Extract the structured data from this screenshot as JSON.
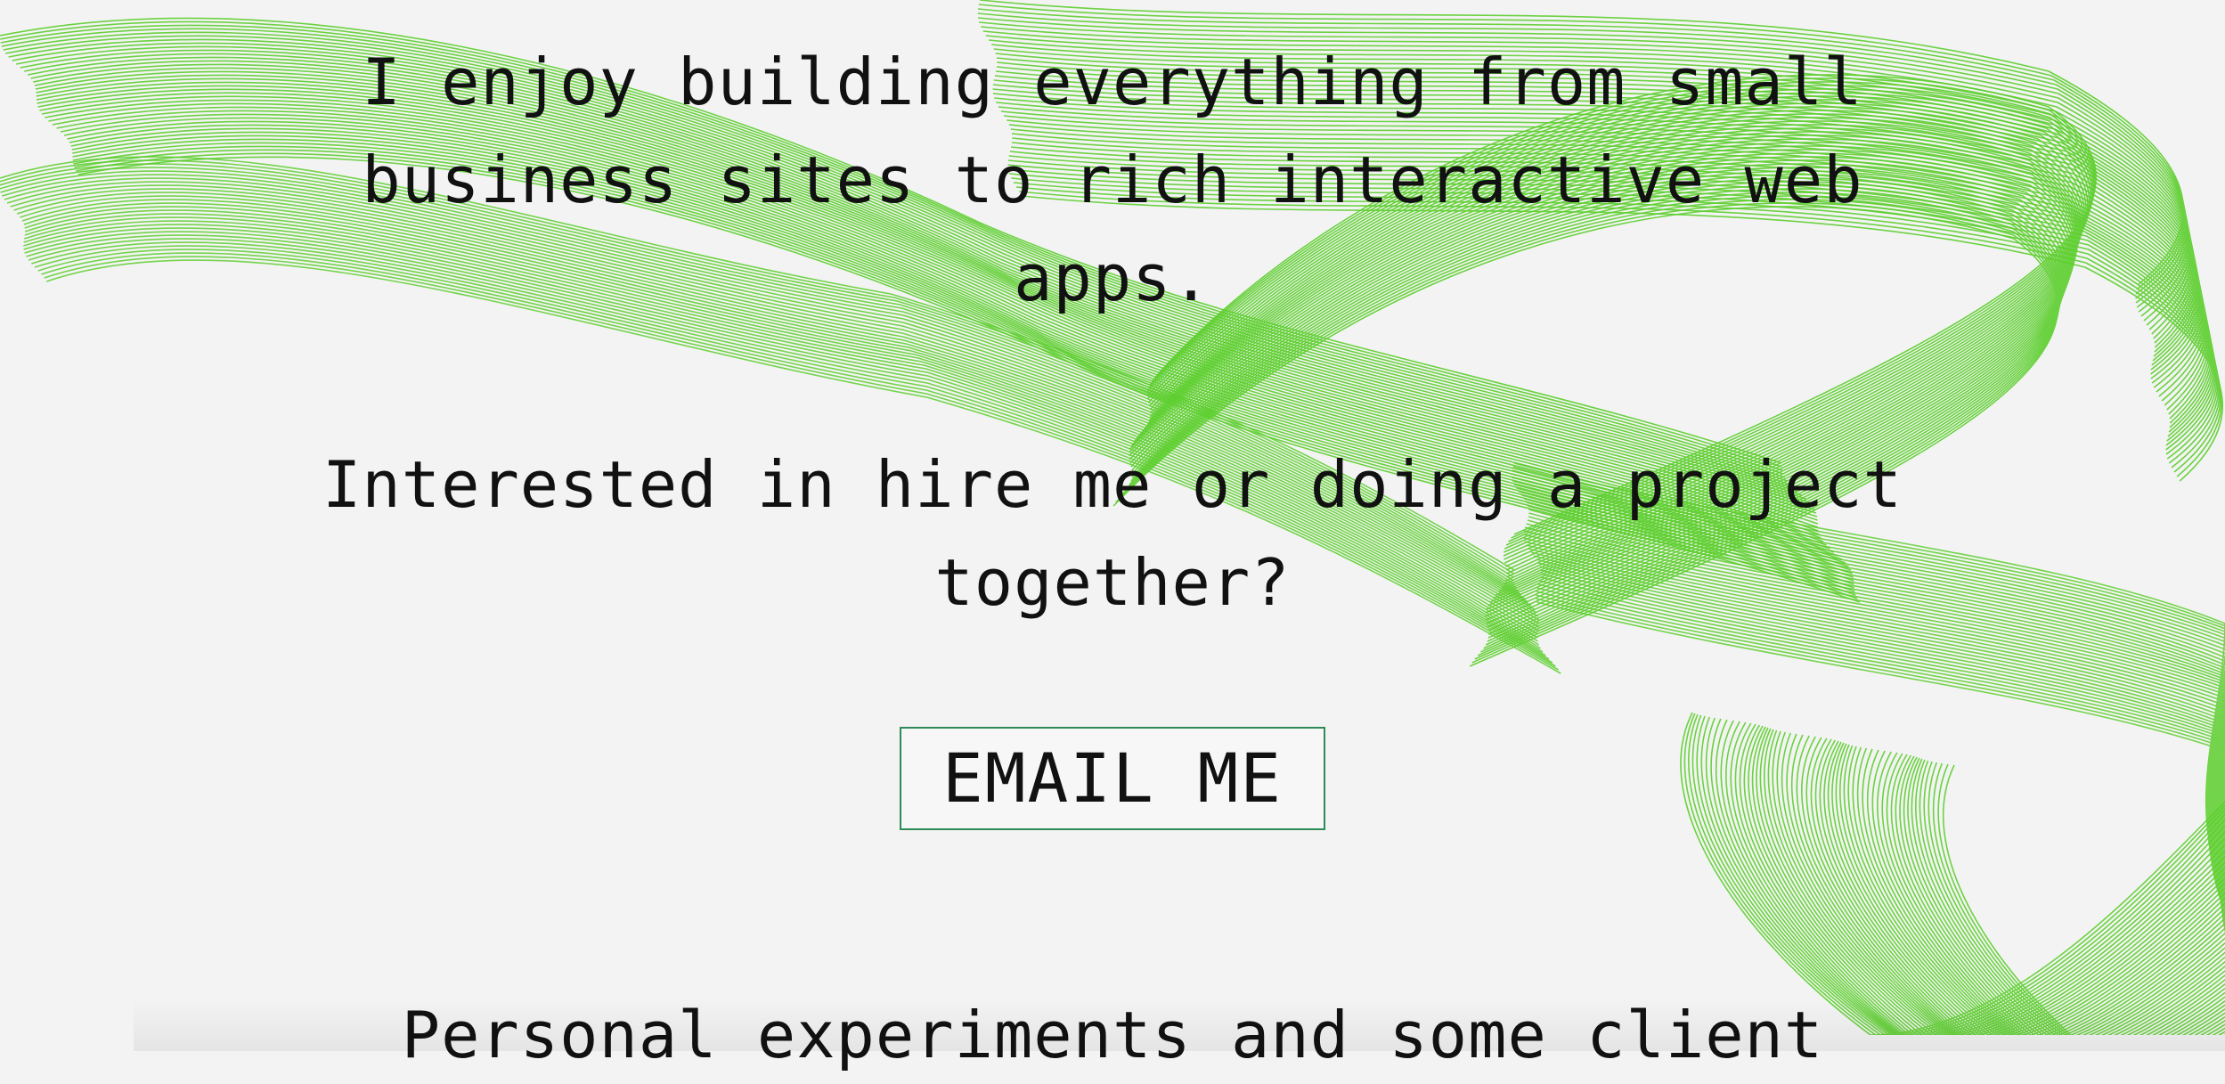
{
  "intro": {
    "line1": "I enjoy building everything from small",
    "line2": "business sites to rich interactive web",
    "line3": "apps."
  },
  "cta": {
    "question_line1": "Interested in hire me or doing a project",
    "question_line2": "together?",
    "email_label": "EMAIL ME"
  },
  "projects": {
    "heading": "Personal experiments and some client"
  },
  "theme": {
    "background": "#f3f3f3",
    "art_stroke": "#5dcf2e",
    "button_border": "#2e8b57",
    "text": "#111111"
  }
}
